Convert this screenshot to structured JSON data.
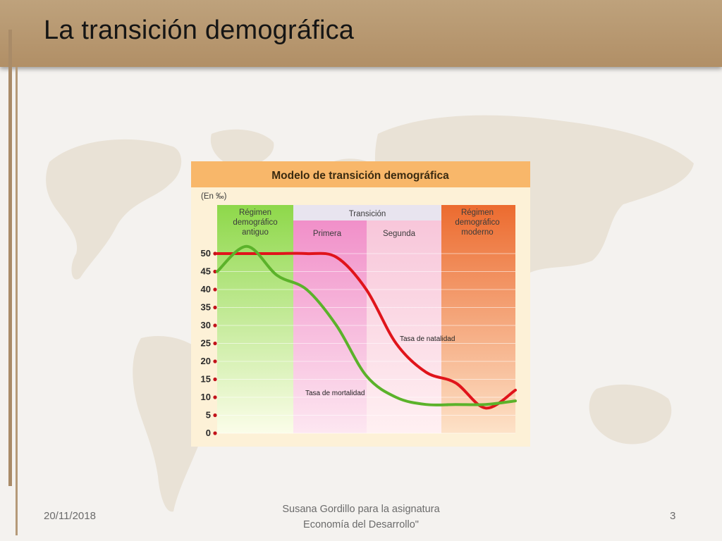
{
  "slide": {
    "title": "La transición demográfica",
    "date": "20/11/2018",
    "author_line1": "Susana Gordillo para la asignatura",
    "author_line2": "Economía del Desarrollo\"",
    "page_number": "3"
  },
  "colors": {
    "title_bar": "#b8966d",
    "natalidad": "#e0141b",
    "mortalidad": "#5bb22a",
    "phase_antiguo": "#8ed84a",
    "phase_primera": "#f089c6",
    "phase_segunda": "#f7c3d8",
    "phase_moderno": "#ec6b2f",
    "chart_header": "#f8b76a"
  },
  "chart_data": {
    "type": "line",
    "title": "Modelo de transición demográfica",
    "unit_label": "(En ‰)",
    "ylabel": "",
    "xlabel": "",
    "ylim": [
      0,
      50
    ],
    "y_ticks": [
      0,
      5,
      10,
      15,
      20,
      25,
      30,
      35,
      40,
      45,
      50
    ],
    "phases": [
      {
        "label": "Régimen demográfico antiguo",
        "lines": [
          "Régimen",
          "demográfico",
          "antiguo"
        ]
      },
      {
        "label": "Primera",
        "group": "Transición"
      },
      {
        "label": "Segunda",
        "group": "Transición"
      },
      {
        "label": "Régimen demográfico moderno",
        "lines": [
          "Régimen",
          "demográfico",
          "moderno"
        ]
      }
    ],
    "transition_label": "Transición",
    "series": [
      {
        "name": "Tasa de natalidad",
        "x": [
          0,
          10,
          20,
          30,
          40,
          50,
          60,
          70,
          80,
          90,
          100
        ],
        "values": [
          50,
          50,
          50,
          50,
          49,
          40,
          25,
          17,
          14,
          7,
          12
        ]
      },
      {
        "name": "Tasa de mortalidad",
        "x": [
          0,
          10,
          20,
          30,
          40,
          50,
          60,
          70,
          80,
          90,
          100
        ],
        "values": [
          45,
          52,
          44,
          40,
          30,
          16,
          10,
          8,
          8,
          8,
          9
        ]
      }
    ]
  }
}
